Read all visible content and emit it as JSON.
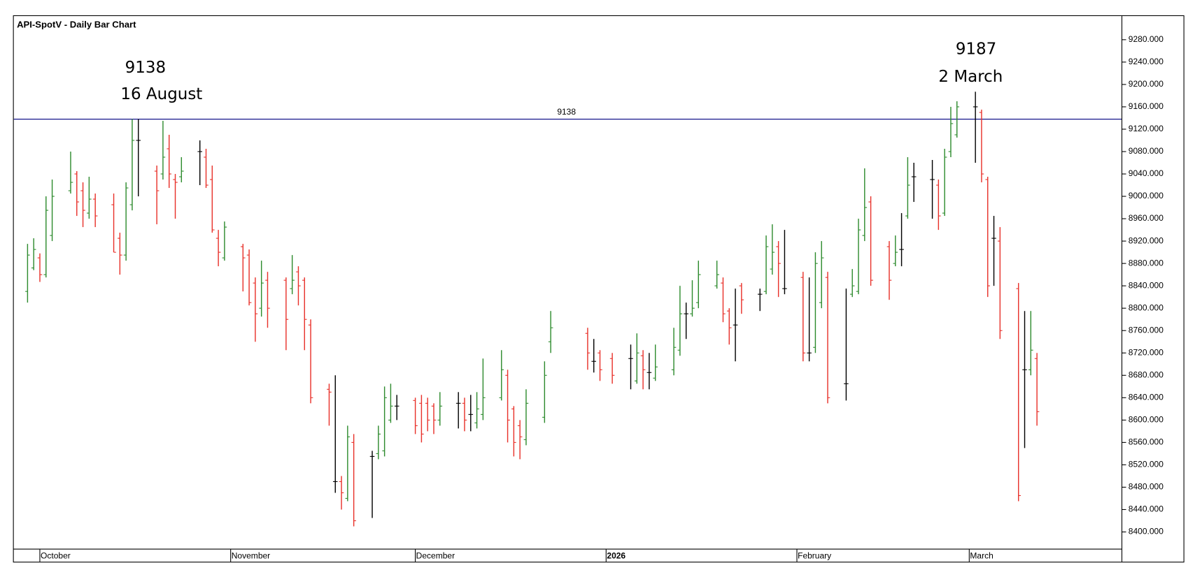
{
  "chart_data": {
    "type": "ohlc",
    "title": "API-SpotV - Daily Bar Chart",
    "annotations": [
      "9138",
      "16 August",
      "9187",
      "2 March"
    ],
    "hline": {
      "value": 9138,
      "label": "9138",
      "color": "#000080"
    },
    "colors": {
      "up": "#2e8b2e",
      "down": "#e8312a",
      "flat": "#000000"
    },
    "ylim": [
      8370,
      9310
    ],
    "yticks": [
      {
        "value": 8400,
        "label": "8400.000"
      },
      {
        "value": 8440,
        "label": "8440.000"
      },
      {
        "value": 8480,
        "label": "8480.000"
      },
      {
        "value": 8520,
        "label": "8520.000"
      },
      {
        "value": 8560,
        "label": "8560.000"
      },
      {
        "value": 8600,
        "label": "8600.000"
      },
      {
        "value": 8640,
        "label": "8640.000"
      },
      {
        "value": 8680,
        "label": "8680.000"
      },
      {
        "value": 8720,
        "label": "8720.000"
      },
      {
        "value": 8760,
        "label": "8760.000"
      },
      {
        "value": 8800,
        "label": "8800.000"
      },
      {
        "value": 8840,
        "label": "8840.000"
      },
      {
        "value": 8880,
        "label": "8880.000"
      },
      {
        "value": 8920,
        "label": "8920.000"
      },
      {
        "value": 8960,
        "label": "8960.000"
      },
      {
        "value": 9000,
        "label": "9000.000"
      },
      {
        "value": 9040,
        "label": "9040.000"
      },
      {
        "value": 9080,
        "label": "9080.000"
      },
      {
        "value": 9120,
        "label": "9120.000"
      },
      {
        "value": 9160,
        "label": "9160.000"
      },
      {
        "value": 9200,
        "label": "9200.000"
      },
      {
        "value": 9240,
        "label": "9240.000"
      },
      {
        "value": 9280,
        "label": "9280.000"
      }
    ],
    "categories": [
      null,
      null,
      "October",
      null,
      null,
      null,
      null,
      null,
      null,
      null,
      null,
      null,
      null,
      null,
      null,
      null,
      null,
      null,
      null,
      null,
      null,
      null,
      null,
      null,
      null,
      null,
      null,
      null,
      null,
      null,
      null,
      null,
      null,
      "November",
      null,
      null,
      null,
      null,
      null,
      null,
      null,
      null,
      null,
      null,
      null,
      null,
      null,
      null,
      null,
      null,
      null,
      null,
      null,
      null,
      null,
      null,
      null,
      null,
      null,
      null,
      null,
      null,
      null,
      "December",
      null,
      null,
      null,
      null,
      null,
      null,
      null,
      null,
      null,
      null,
      null,
      null,
      null,
      null,
      null,
      null,
      null,
      null,
      null,
      null,
      null,
      null,
      null,
      null,
      null,
      null,
      null,
      null,
      null,
      null,
      "2026",
      null,
      null,
      null,
      null,
      null,
      null,
      null,
      null,
      null,
      null,
      null,
      null,
      null,
      null,
      null,
      null,
      null,
      null,
      null,
      null,
      null,
      null,
      null,
      null,
      null,
      null,
      null,
      null,
      null,
      null,
      "February",
      null,
      null,
      null,
      null,
      null,
      null,
      null,
      null,
      null,
      null,
      null,
      null,
      null,
      null,
      null,
      null,
      null,
      null,
      null,
      null,
      null,
      null,
      null,
      null,
      null,
      null,
      null,
      "March",
      null,
      null,
      null,
      null,
      null,
      null,
      null,
      null,
      null,
      null,
      null
    ],
    "open": [
      8830,
      8872,
      8890,
      8860,
      8930,
      null,
      null,
      9010,
      9040,
      9010,
      8970,
      8995,
      null,
      null,
      8985,
      8925,
      8895,
      8985,
      9100,
      null,
      null,
      9045,
      9040,
      9085,
      9030,
      9035,
      null,
      null,
      9080,
      9070,
      9030,
      8925,
      8890,
      null,
      null,
      8910,
      8895,
      8845,
      8800,
      8850,
      null,
      null,
      8850,
      8835,
      8865,
      8850,
      8770,
      null,
      null,
      8655,
      8490,
      8490,
      8460,
      8560,
      null,
      null,
      8535,
      8540,
      8545,
      8600,
      8625,
      null,
      null,
      8635,
      8630,
      8630,
      8625,
      8600,
      null,
      null,
      8630,
      8630,
      8610,
      8595,
      8610,
      null,
      null,
      8640,
      8680,
      8620,
      8590,
      8565,
      null,
      null,
      8605,
      8740,
      null,
      null,
      null,
      null,
      null,
      8755,
      8705,
      8720,
      null,
      8710,
      null,
      null,
      8710,
      8670,
      8715,
      8685,
      8675,
      null,
      null,
      8690,
      8725,
      8790,
      8790,
      8810,
      null,
      null,
      8840,
      8845,
      8795,
      8770,
      8840,
      null,
      null,
      8825,
      8830,
      8870,
      8910,
      8835,
      null,
      null,
      8855,
      8720,
      8730,
      8810,
      8855,
      null,
      null,
      8665,
      8825,
      8830,
      8930,
      8990,
      null,
      null,
      8910,
      8880,
      8905,
      8965,
      9035,
      null,
      null,
      9030,
      9020,
      8970,
      9080,
      9110,
      null,
      null,
      9160,
      9150,
      9030,
      8925,
      8920,
      null,
      null,
      8835,
      8690,
      8690,
      8710
    ],
    "high": [
      8915,
      8925,
      8898,
      9000,
      9030,
      null,
      null,
      9080,
      9045,
      9025,
      9035,
      9005,
      null,
      null,
      9005,
      8935,
      9025,
      9138,
      9138,
      null,
      null,
      9055,
      9135,
      9110,
      9040,
      9070,
      null,
      null,
      9100,
      9085,
      9055,
      8940,
      8955,
      null,
      null,
      8915,
      8905,
      8855,
      8885,
      8865,
      null,
      null,
      8855,
      8895,
      8875,
      8855,
      8780,
      null,
      null,
      8665,
      8680,
      8500,
      8590,
      8575,
      null,
      null,
      8545,
      8590,
      8660,
      8665,
      8645,
      null,
      null,
      8640,
      8645,
      8640,
      8630,
      8650,
      null,
      null,
      8650,
      8640,
      8645,
      8650,
      8710,
      null,
      null,
      8725,
      8690,
      8625,
      8600,
      8655,
      null,
      null,
      8705,
      8795,
      null,
      null,
      null,
      null,
      null,
      8765,
      8745,
      8725,
      null,
      8720,
      null,
      null,
      8735,
      8755,
      8725,
      8720,
      8735,
      null,
      null,
      8765,
      8840,
      8810,
      8850,
      8885,
      null,
      null,
      8885,
      8855,
      8800,
      8835,
      8845,
      null,
      null,
      8835,
      8930,
      8950,
      8920,
      8940,
      null,
      null,
      8865,
      8855,
      8900,
      8920,
      8865,
      null,
      null,
      8835,
      8870,
      8960,
      9050,
      9000,
      null,
      null,
      8920,
      8930,
      8970,
      9070,
      9060,
      null,
      null,
      9065,
      9030,
      9085,
      9160,
      9170,
      null,
      null,
      9187,
      9155,
      9035,
      8965,
      8945,
      null,
      null,
      8845,
      8795,
      8795,
      8720
    ],
    "low": [
      8810,
      8868,
      8847,
      8855,
      8920,
      null,
      null,
      9005,
      8965,
      8945,
      8960,
      8945,
      null,
      null,
      8900,
      8860,
      8885,
      8975,
      9000,
      null,
      null,
      8950,
      9030,
      9015,
      8960,
      9025,
      null,
      null,
      9020,
      9015,
      8935,
      8875,
      8885,
      null,
      null,
      8830,
      8805,
      8740,
      8785,
      8765,
      null,
      null,
      8725,
      8825,
      8805,
      8725,
      8630,
      null,
      null,
      8590,
      8470,
      8440,
      8455,
      8410,
      null,
      null,
      8425,
      8530,
      8535,
      8595,
      8600,
      null,
      null,
      8575,
      8560,
      8580,
      8575,
      8590,
      null,
      null,
      8585,
      8580,
      8580,
      8585,
      8600,
      null,
      null,
      8635,
      8560,
      8535,
      8530,
      8555,
      null,
      null,
      8595,
      8720,
      null,
      null,
      null,
      null,
      null,
      8690,
      8685,
      8670,
      null,
      8665,
      null,
      null,
      8655,
      8665,
      8655,
      8655,
      8670,
      null,
      null,
      8680,
      8715,
      8745,
      8785,
      8800,
      null,
      null,
      8835,
      8775,
      8735,
      8705,
      8790,
      null,
      null,
      8795,
      8825,
      8860,
      8820,
      8825,
      null,
      null,
      8705,
      8705,
      8720,
      8800,
      8630,
      null,
      null,
      8635,
      8820,
      8825,
      8920,
      8840,
      null,
      null,
      8815,
      8875,
      8875,
      8960,
      8990,
      null,
      null,
      8960,
      8940,
      8965,
      9070,
      9105,
      null,
      null,
      9060,
      9025,
      8820,
      8840,
      8745,
      null,
      null,
      8455,
      8550,
      8680,
      8590
    ],
    "close": [
      8895,
      8905,
      8860,
      8975,
      9000,
      null,
      null,
      9025,
      8990,
      8975,
      8995,
      8965,
      null,
      null,
      8900,
      8895,
      9015,
      9100,
      9100,
      null,
      null,
      9010,
      9070,
      9040,
      9025,
      9045,
      null,
      null,
      9080,
      9020,
      8940,
      8900,
      8945,
      null,
      null,
      8890,
      8810,
      8790,
      8845,
      8800,
      null,
      null,
      8780,
      8850,
      8840,
      8780,
      8640,
      null,
      null,
      8650,
      8490,
      8470,
      8570,
      8420,
      null,
      null,
      8535,
      8575,
      8640,
      8625,
      8625,
      null,
      null,
      8590,
      8575,
      8600,
      8600,
      8625,
      null,
      null,
      8630,
      8600,
      8610,
      8620,
      8640,
      null,
      null,
      8690,
      8600,
      8560,
      8570,
      8630,
      null,
      null,
      8680,
      8765,
      null,
      null,
      null,
      null,
      null,
      8720,
      8705,
      8690,
      null,
      8680,
      null,
      null,
      8710,
      8720,
      8690,
      8685,
      8695,
      null,
      null,
      8730,
      8790,
      8790,
      8800,
      8860,
      null,
      null,
      8860,
      8790,
      8765,
      8770,
      8815,
      null,
      null,
      8825,
      8910,
      8900,
      8880,
      8835,
      null,
      null,
      8720,
      8720,
      8880,
      8890,
      8640,
      null,
      null,
      8665,
      8840,
      8940,
      8980,
      8850,
      null,
      null,
      8850,
      8900,
      8905,
      9020,
      9035,
      null,
      null,
      9030,
      8965,
      9070,
      9130,
      9160,
      null,
      null,
      9160,
      9040,
      8840,
      8925,
      8760,
      null,
      null,
      8465,
      8690,
      8725,
      8615
    ]
  }
}
